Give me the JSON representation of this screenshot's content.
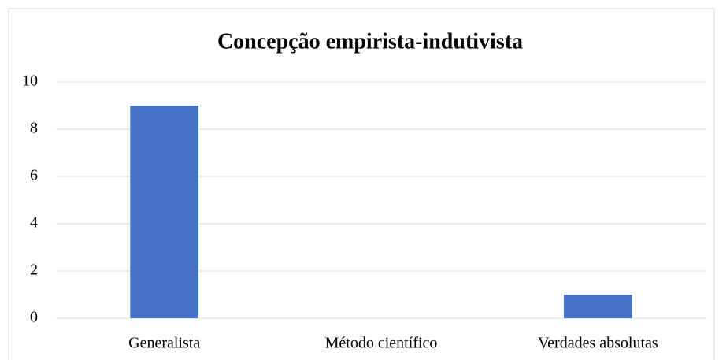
{
  "chart_data": {
    "type": "bar",
    "title": "Concepção empirista-indutivista",
    "categories": [
      "Generalista",
      "Método científico",
      "Verdades absolutas"
    ],
    "values": [
      9,
      0,
      1
    ],
    "color": "#4472c4",
    "ylim": [
      0,
      10
    ],
    "yticks": [
      0,
      2,
      4,
      6,
      8,
      10
    ],
    "grid": true
  }
}
